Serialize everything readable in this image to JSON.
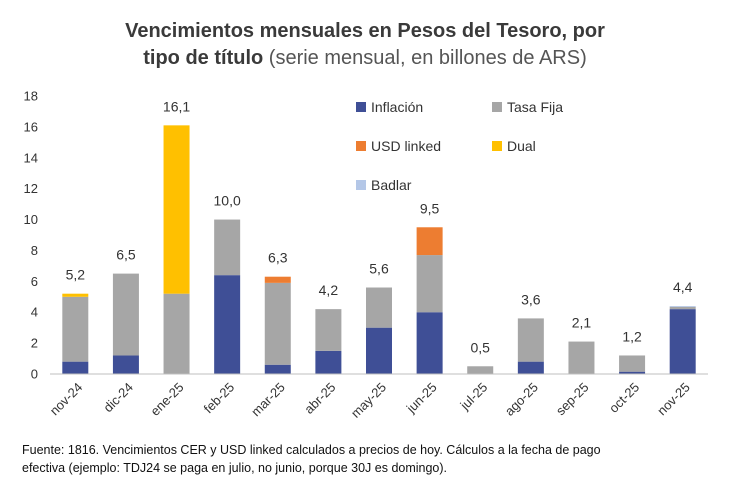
{
  "title": {
    "line1": "Vencimientos mensuales en Pesos del Tesoro, por",
    "line2_bold": "tipo de título",
    "line2_light": "(serie mensual, en billones de ARS)"
  },
  "footnote": {
    "line1": "Fuente: 1816. Vencimientos CER y USD linked calculados a precios de hoy. Cálculos a la fecha de pago",
    "line2": "efectiva (ejemplo: TDJ24 se paga en julio, no junio, porque 30J es domingo)."
  },
  "chart_data": {
    "type": "bar",
    "stacked": true,
    "categories": [
      "nov-24",
      "dic-24",
      "ene-25",
      "feb-25",
      "mar-25",
      "abr-25",
      "may-25",
      "jun-25",
      "jul-25",
      "ago-25",
      "sep-25",
      "oct-25",
      "nov-25"
    ],
    "ylim": [
      0,
      18
    ],
    "yticks": [
      0,
      2,
      4,
      6,
      8,
      10,
      12,
      14,
      16,
      18
    ],
    "grid": false,
    "legend_position": "top-right",
    "series": [
      {
        "name": "Inflación",
        "color": "#3f4f96",
        "values": [
          0.8,
          1.2,
          0.0,
          6.4,
          0.6,
          1.5,
          3.0,
          4.0,
          0.0,
          0.8,
          0.0,
          0.15,
          4.2
        ]
      },
      {
        "name": "Tasa Fija",
        "color": "#a6a6a6",
        "values": [
          4.2,
          5.3,
          5.2,
          3.6,
          5.3,
          2.7,
          2.6,
          3.7,
          0.5,
          2.8,
          2.1,
          1.05,
          0.15
        ]
      },
      {
        "name": "USD linked",
        "color": "#ed7d31",
        "values": [
          0.0,
          0.0,
          0.0,
          0.0,
          0.4,
          0.0,
          0.0,
          1.8,
          0.0,
          0.0,
          0.0,
          0.0,
          0.0
        ]
      },
      {
        "name": "Dual",
        "color": "#ffc000",
        "values": [
          0.2,
          0.0,
          10.9,
          0.0,
          0.0,
          0.0,
          0.0,
          0.0,
          0.0,
          0.0,
          0.0,
          0.0,
          0.0
        ]
      },
      {
        "name": "Badlar",
        "color": "#b4c7e7",
        "values": [
          0.0,
          0.0,
          0.0,
          0.0,
          0.0,
          0.0,
          0.0,
          0.0,
          0.0,
          0.0,
          0.0,
          0.0,
          0.05
        ]
      }
    ],
    "totals": [
      "5,2",
      "6,5",
      "16,1",
      "10,0",
      "6,3",
      "4,2",
      "5,6",
      "9,5",
      "0,5",
      "3,6",
      "2,1",
      "1,2",
      "4,4"
    ]
  }
}
